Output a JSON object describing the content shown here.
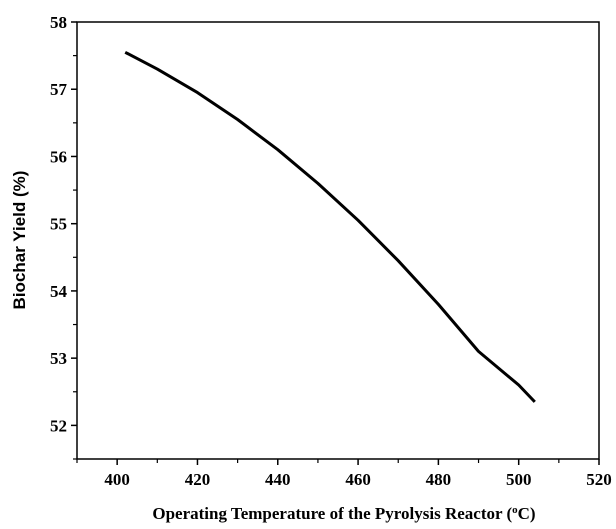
{
  "chart_data": {
    "type": "line",
    "title": "",
    "xlabel": "Operating Temperature of the Pyrolysis Reactor (",
    "xlabel_sup": "o",
    "xlabel_end": "C)",
    "ylabel": "Biochar Yield (%)",
    "xlim": [
      390,
      520
    ],
    "ylim": [
      51.5,
      58
    ],
    "x_ticks": [
      400,
      420,
      440,
      460,
      480,
      500,
      520
    ],
    "y_ticks": [
      52,
      53,
      54,
      55,
      56,
      57,
      58
    ],
    "grid": false,
    "series": [
      {
        "x": [
          402,
          410,
          420,
          430,
          440,
          450,
          460,
          470,
          480,
          490,
          500,
          504
        ],
        "y": [
          57.55,
          57.3,
          56.95,
          56.55,
          56.1,
          55.6,
          55.05,
          54.45,
          53.8,
          53.1,
          52.6,
          52.35
        ]
      }
    ]
  }
}
